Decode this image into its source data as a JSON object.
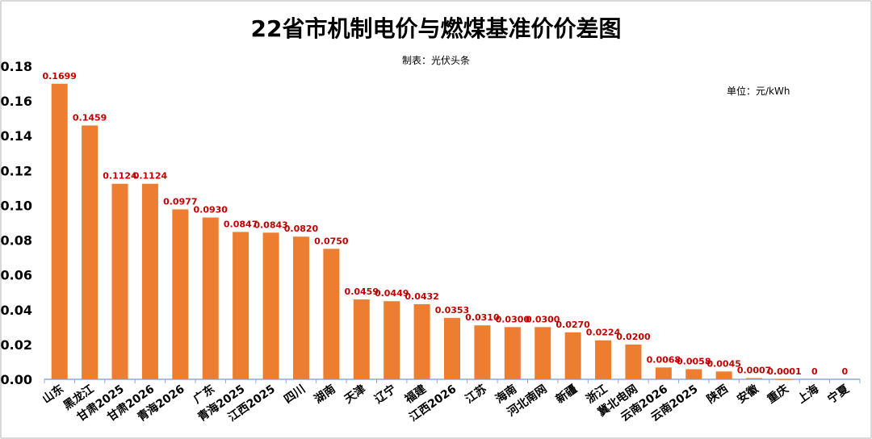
{
  "chart_data": {
    "type": "bar",
    "title": "22省市机制电价与燃煤基准价价差图",
    "subtitle": "制表：光伏头条",
    "unit": "单位：元/kWh",
    "xlabel": "",
    "ylabel": "",
    "ylim": [
      0,
      0.18
    ],
    "yticks": [
      "0.00",
      "0.02",
      "0.04",
      "0.06",
      "0.08",
      "0.10",
      "0.12",
      "0.14",
      "0.16",
      "0.18"
    ],
    "grid": false,
    "bar_color": "#ED7D31",
    "label_color": "#C00000",
    "categories": [
      "山东",
      "黑龙江",
      "甘肃2025",
      "甘肃2026",
      "青海2026",
      "广东",
      "青海2025",
      "江西2025",
      "四川",
      "湖南",
      "天津",
      "辽宁",
      "福建",
      "江西2026",
      "江苏",
      "海南",
      "河北南网",
      "新疆",
      "浙江",
      "冀北电网",
      "云南2026",
      "云南2025",
      "陕西",
      "安徽",
      "重庆",
      "上海",
      "宁夏"
    ],
    "values": [
      0.1699,
      0.1459,
      0.1124,
      0.1124,
      0.0977,
      0.093,
      0.0847,
      0.0843,
      0.082,
      0.075,
      0.0459,
      0.0449,
      0.0432,
      0.0353,
      0.031,
      0.03,
      0.03,
      0.027,
      0.0224,
      0.02,
      0.0068,
      0.0058,
      0.0045,
      0.0007,
      0.0001,
      0,
      0
    ],
    "value_labels": [
      "0.1699",
      "0.1459",
      "0.1124",
      "0.1124",
      "0.0977",
      "0.0930",
      "0.0847",
      "0.0843",
      "0.0820",
      "0.0750",
      "0.0459",
      "0.0449",
      "0.0432",
      "0.0353",
      "0.0310",
      "0.0300",
      "0.0300",
      "0.0270",
      "0.0224",
      "0.0200",
      "0.0068",
      "0.0058",
      "0.0045",
      "0.0007",
      "0.0001",
      "0",
      "0"
    ]
  }
}
